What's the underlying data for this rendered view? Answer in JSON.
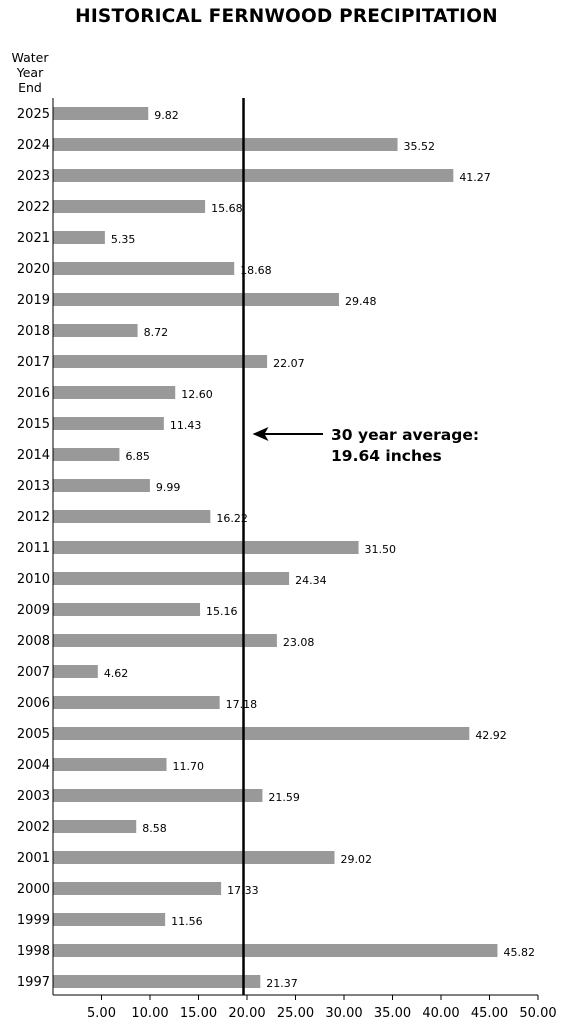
{
  "chart_data": {
    "type": "bar",
    "orientation": "horizontal",
    "title": "HISTORICAL FERNWOOD PRECIPITATION",
    "ylabel_lines": [
      "Water",
      "Year",
      "End"
    ],
    "xlabel": "",
    "xlim": [
      0,
      50
    ],
    "xticks": [
      "5.00",
      "10.00",
      "15.00",
      "20.00",
      "25.00",
      "30.00",
      "35.00",
      "40.00",
      "45.00",
      "50.00"
    ],
    "xtick_values": [
      5,
      10,
      15,
      20,
      25,
      30,
      35,
      40,
      45,
      50
    ],
    "categories": [
      "2025",
      "2024",
      "2023",
      "2022",
      "2021",
      "2020",
      "2019",
      "2018",
      "2017",
      "2016",
      "2015",
      "2014",
      "2013",
      "2012",
      "2011",
      "2010",
      "2009",
      "2008",
      "2007",
      "2006",
      "2005",
      "2004",
      "2003",
      "2002",
      "2001",
      "2000",
      "1999",
      "1998",
      "1997"
    ],
    "values": [
      9.82,
      35.52,
      41.27,
      15.68,
      5.35,
      18.68,
      29.48,
      8.72,
      22.07,
      12.6,
      11.43,
      6.85,
      9.99,
      16.22,
      31.5,
      24.34,
      15.16,
      23.08,
      4.62,
      17.18,
      42.92,
      11.7,
      21.59,
      8.58,
      29.02,
      17.33,
      11.56,
      45.82,
      21.37
    ],
    "value_labels": [
      "9.82",
      "35.52",
      "41.27",
      "15.68",
      "5.35",
      "18.68",
      "29.48",
      "8.72",
      "22.07",
      "12.60",
      "11.43",
      "6.85",
      "9.99",
      "16.22",
      "31.50",
      "24.34",
      "15.16",
      "23.08",
      "4.62",
      "17.18",
      "42.92",
      "11.70",
      "21.59",
      "8.58",
      "29.02",
      "17.33",
      "11.56",
      "45.82",
      "21.37"
    ],
    "bar_color": "#999999",
    "grid": false,
    "reference_line": {
      "value": 19.64,
      "annotation_lines": [
        "30 year average:",
        "19.64 inches"
      ]
    }
  }
}
